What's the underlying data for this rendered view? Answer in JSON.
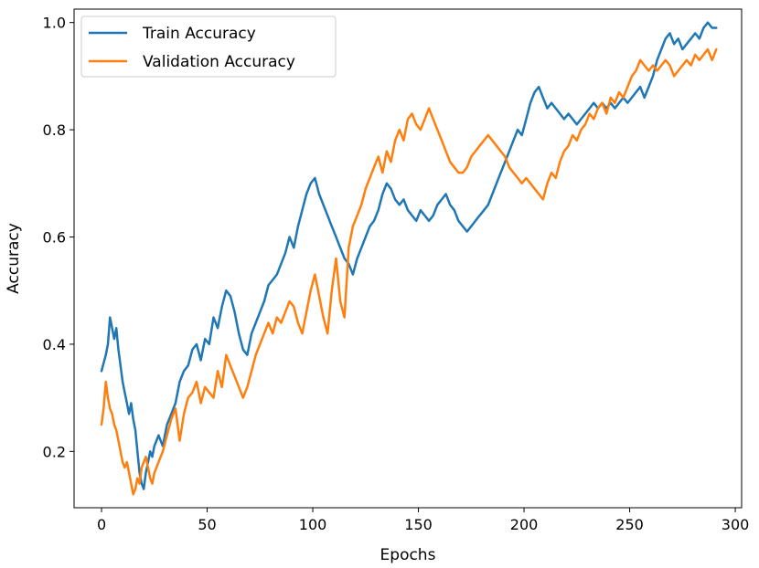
{
  "chart_data": {
    "type": "line",
    "title": "",
    "xlabel": "Epochs",
    "ylabel": "Accuracy",
    "xlim": [
      -13,
      303
    ],
    "ylim": [
      0.095,
      1.025
    ],
    "xticks": [
      0,
      50,
      100,
      150,
      200,
      250,
      300
    ],
    "yticks": [
      0.2,
      0.4,
      0.6,
      0.8,
      1.0
    ],
    "xtick_labels": [
      "0",
      "50",
      "100",
      "150",
      "200",
      "250",
      "300"
    ],
    "ytick_labels": [
      "0.2",
      "0.4",
      "0.6",
      "0.8",
      "1.0"
    ],
    "grid": false,
    "legend": "upper-left",
    "series": [
      {
        "name": "Train Accuracy",
        "color": "#1f77b4",
        "points": [
          [
            0,
            0.35
          ],
          [
            2,
            0.38
          ],
          [
            3,
            0.4
          ],
          [
            4,
            0.45
          ],
          [
            5,
            0.43
          ],
          [
            6,
            0.41
          ],
          [
            7,
            0.43
          ],
          [
            8,
            0.39
          ],
          [
            9,
            0.36
          ],
          [
            10,
            0.33
          ],
          [
            11,
            0.31
          ],
          [
            12,
            0.29
          ],
          [
            13,
            0.27
          ],
          [
            14,
            0.29
          ],
          [
            15,
            0.26
          ],
          [
            16,
            0.24
          ],
          [
            17,
            0.2
          ],
          [
            18,
            0.16
          ],
          [
            19,
            0.14
          ],
          [
            20,
            0.13
          ],
          [
            21,
            0.16
          ],
          [
            22,
            0.18
          ],
          [
            23,
            0.2
          ],
          [
            24,
            0.19
          ],
          [
            25,
            0.21
          ],
          [
            27,
            0.23
          ],
          [
            29,
            0.21
          ],
          [
            31,
            0.25
          ],
          [
            33,
            0.27
          ],
          [
            35,
            0.29
          ],
          [
            37,
            0.33
          ],
          [
            39,
            0.35
          ],
          [
            41,
            0.36
          ],
          [
            43,
            0.39
          ],
          [
            45,
            0.4
          ],
          [
            47,
            0.37
          ],
          [
            49,
            0.41
          ],
          [
            51,
            0.4
          ],
          [
            53,
            0.45
          ],
          [
            55,
            0.43
          ],
          [
            57,
            0.47
          ],
          [
            59,
            0.5
          ],
          [
            61,
            0.49
          ],
          [
            63,
            0.46
          ],
          [
            65,
            0.42
          ],
          [
            67,
            0.39
          ],
          [
            69,
            0.38
          ],
          [
            71,
            0.42
          ],
          [
            73,
            0.44
          ],
          [
            75,
            0.46
          ],
          [
            77,
            0.48
          ],
          [
            79,
            0.51
          ],
          [
            81,
            0.52
          ],
          [
            83,
            0.53
          ],
          [
            85,
            0.55
          ],
          [
            87,
            0.57
          ],
          [
            89,
            0.6
          ],
          [
            91,
            0.58
          ],
          [
            93,
            0.62
          ],
          [
            95,
            0.65
          ],
          [
            97,
            0.68
          ],
          [
            99,
            0.7
          ],
          [
            101,
            0.71
          ],
          [
            103,
            0.68
          ],
          [
            105,
            0.66
          ],
          [
            107,
            0.64
          ],
          [
            109,
            0.62
          ],
          [
            111,
            0.6
          ],
          [
            113,
            0.58
          ],
          [
            115,
            0.56
          ],
          [
            117,
            0.55
          ],
          [
            119,
            0.53
          ],
          [
            121,
            0.56
          ],
          [
            123,
            0.58
          ],
          [
            125,
            0.6
          ],
          [
            127,
            0.62
          ],
          [
            129,
            0.63
          ],
          [
            131,
            0.65
          ],
          [
            133,
            0.68
          ],
          [
            135,
            0.7
          ],
          [
            137,
            0.69
          ],
          [
            139,
            0.67
          ],
          [
            141,
            0.66
          ],
          [
            143,
            0.67
          ],
          [
            145,
            0.65
          ],
          [
            147,
            0.64
          ],
          [
            149,
            0.63
          ],
          [
            151,
            0.65
          ],
          [
            153,
            0.64
          ],
          [
            155,
            0.63
          ],
          [
            157,
            0.64
          ],
          [
            159,
            0.66
          ],
          [
            161,
            0.67
          ],
          [
            163,
            0.68
          ],
          [
            165,
            0.66
          ],
          [
            167,
            0.65
          ],
          [
            169,
            0.63
          ],
          [
            171,
            0.62
          ],
          [
            173,
            0.61
          ],
          [
            175,
            0.62
          ],
          [
            177,
            0.63
          ],
          [
            179,
            0.64
          ],
          [
            181,
            0.65
          ],
          [
            183,
            0.66
          ],
          [
            185,
            0.68
          ],
          [
            187,
            0.7
          ],
          [
            189,
            0.72
          ],
          [
            191,
            0.74
          ],
          [
            193,
            0.76
          ],
          [
            195,
            0.78
          ],
          [
            197,
            0.8
          ],
          [
            199,
            0.79
          ],
          [
            201,
            0.82
          ],
          [
            203,
            0.85
          ],
          [
            205,
            0.87
          ],
          [
            207,
            0.88
          ],
          [
            209,
            0.86
          ],
          [
            211,
            0.84
          ],
          [
            213,
            0.85
          ],
          [
            215,
            0.84
          ],
          [
            217,
            0.83
          ],
          [
            219,
            0.82
          ],
          [
            221,
            0.83
          ],
          [
            223,
            0.82
          ],
          [
            225,
            0.81
          ],
          [
            227,
            0.82
          ],
          [
            229,
            0.83
          ],
          [
            231,
            0.84
          ],
          [
            233,
            0.85
          ],
          [
            235,
            0.84
          ],
          [
            237,
            0.85
          ],
          [
            239,
            0.84
          ],
          [
            241,
            0.85
          ],
          [
            243,
            0.84
          ],
          [
            245,
            0.85
          ],
          [
            247,
            0.86
          ],
          [
            249,
            0.85
          ],
          [
            251,
            0.86
          ],
          [
            253,
            0.87
          ],
          [
            255,
            0.88
          ],
          [
            257,
            0.86
          ],
          [
            259,
            0.88
          ],
          [
            261,
            0.9
          ],
          [
            263,
            0.93
          ],
          [
            265,
            0.95
          ],
          [
            267,
            0.97
          ],
          [
            269,
            0.98
          ],
          [
            271,
            0.96
          ],
          [
            273,
            0.97
          ],
          [
            275,
            0.95
          ],
          [
            277,
            0.96
          ],
          [
            279,
            0.97
          ],
          [
            281,
            0.98
          ],
          [
            283,
            0.97
          ],
          [
            285,
            0.99
          ],
          [
            287,
            1.0
          ],
          [
            289,
            0.99
          ],
          [
            291,
            0.99
          ]
        ]
      },
      {
        "name": "Validation Accuracy",
        "color": "#ff7f0e",
        "points": [
          [
            0,
            0.25
          ],
          [
            1,
            0.28
          ],
          [
            2,
            0.33
          ],
          [
            3,
            0.3
          ],
          [
            4,
            0.28
          ],
          [
            5,
            0.27
          ],
          [
            6,
            0.25
          ],
          [
            7,
            0.24
          ],
          [
            8,
            0.22
          ],
          [
            9,
            0.2
          ],
          [
            10,
            0.18
          ],
          [
            11,
            0.17
          ],
          [
            12,
            0.18
          ],
          [
            13,
            0.16
          ],
          [
            14,
            0.14
          ],
          [
            15,
            0.12
          ],
          [
            16,
            0.13
          ],
          [
            17,
            0.15
          ],
          [
            18,
            0.14
          ],
          [
            19,
            0.17
          ],
          [
            20,
            0.18
          ],
          [
            21,
            0.19
          ],
          [
            22,
            0.17
          ],
          [
            23,
            0.15
          ],
          [
            24,
            0.14
          ],
          [
            25,
            0.16
          ],
          [
            27,
            0.18
          ],
          [
            29,
            0.2
          ],
          [
            31,
            0.23
          ],
          [
            33,
            0.26
          ],
          [
            35,
            0.28
          ],
          [
            37,
            0.22
          ],
          [
            39,
            0.27
          ],
          [
            41,
            0.3
          ],
          [
            43,
            0.31
          ],
          [
            45,
            0.33
          ],
          [
            47,
            0.29
          ],
          [
            49,
            0.32
          ],
          [
            51,
            0.31
          ],
          [
            53,
            0.3
          ],
          [
            55,
            0.35
          ],
          [
            57,
            0.32
          ],
          [
            59,
            0.38
          ],
          [
            61,
            0.36
          ],
          [
            63,
            0.34
          ],
          [
            65,
            0.32
          ],
          [
            67,
            0.3
          ],
          [
            69,
            0.32
          ],
          [
            71,
            0.35
          ],
          [
            73,
            0.38
          ],
          [
            75,
            0.4
          ],
          [
            77,
            0.42
          ],
          [
            79,
            0.44
          ],
          [
            81,
            0.42
          ],
          [
            83,
            0.45
          ],
          [
            85,
            0.44
          ],
          [
            87,
            0.46
          ],
          [
            89,
            0.48
          ],
          [
            91,
            0.47
          ],
          [
            93,
            0.44
          ],
          [
            95,
            0.42
          ],
          [
            97,
            0.46
          ],
          [
            99,
            0.5
          ],
          [
            101,
            0.53
          ],
          [
            103,
            0.49
          ],
          [
            105,
            0.45
          ],
          [
            107,
            0.42
          ],
          [
            109,
            0.5
          ],
          [
            111,
            0.56
          ],
          [
            113,
            0.48
          ],
          [
            115,
            0.45
          ],
          [
            117,
            0.58
          ],
          [
            119,
            0.62
          ],
          [
            121,
            0.64
          ],
          [
            123,
            0.66
          ],
          [
            125,
            0.69
          ],
          [
            127,
            0.71
          ],
          [
            129,
            0.73
          ],
          [
            131,
            0.75
          ],
          [
            133,
            0.72
          ],
          [
            135,
            0.76
          ],
          [
            137,
            0.74
          ],
          [
            139,
            0.78
          ],
          [
            141,
            0.8
          ],
          [
            143,
            0.78
          ],
          [
            145,
            0.82
          ],
          [
            147,
            0.83
          ],
          [
            149,
            0.81
          ],
          [
            151,
            0.8
          ],
          [
            153,
            0.82
          ],
          [
            155,
            0.84
          ],
          [
            157,
            0.82
          ],
          [
            159,
            0.8
          ],
          [
            161,
            0.78
          ],
          [
            163,
            0.76
          ],
          [
            165,
            0.74
          ],
          [
            167,
            0.73
          ],
          [
            169,
            0.72
          ],
          [
            171,
            0.72
          ],
          [
            173,
            0.73
          ],
          [
            175,
            0.75
          ],
          [
            177,
            0.76
          ],
          [
            179,
            0.77
          ],
          [
            181,
            0.78
          ],
          [
            183,
            0.79
          ],
          [
            185,
            0.78
          ],
          [
            187,
            0.77
          ],
          [
            189,
            0.76
          ],
          [
            191,
            0.75
          ],
          [
            193,
            0.73
          ],
          [
            195,
            0.72
          ],
          [
            197,
            0.71
          ],
          [
            199,
            0.7
          ],
          [
            201,
            0.71
          ],
          [
            203,
            0.7
          ],
          [
            205,
            0.69
          ],
          [
            207,
            0.68
          ],
          [
            209,
            0.67
          ],
          [
            211,
            0.7
          ],
          [
            213,
            0.72
          ],
          [
            215,
            0.71
          ],
          [
            217,
            0.74
          ],
          [
            219,
            0.76
          ],
          [
            221,
            0.77
          ],
          [
            223,
            0.79
          ],
          [
            225,
            0.78
          ],
          [
            227,
            0.8
          ],
          [
            229,
            0.81
          ],
          [
            231,
            0.83
          ],
          [
            233,
            0.82
          ],
          [
            235,
            0.84
          ],
          [
            237,
            0.85
          ],
          [
            239,
            0.83
          ],
          [
            241,
            0.86
          ],
          [
            243,
            0.85
          ],
          [
            245,
            0.87
          ],
          [
            247,
            0.86
          ],
          [
            249,
            0.88
          ],
          [
            251,
            0.9
          ],
          [
            253,
            0.91
          ],
          [
            255,
            0.93
          ],
          [
            257,
            0.92
          ],
          [
            259,
            0.91
          ],
          [
            261,
            0.92
          ],
          [
            263,
            0.91
          ],
          [
            265,
            0.92
          ],
          [
            267,
            0.93
          ],
          [
            269,
            0.92
          ],
          [
            271,
            0.9
          ],
          [
            273,
            0.91
          ],
          [
            275,
            0.92
          ],
          [
            277,
            0.93
          ],
          [
            279,
            0.92
          ],
          [
            281,
            0.94
          ],
          [
            283,
            0.93
          ],
          [
            285,
            0.94
          ],
          [
            287,
            0.95
          ],
          [
            289,
            0.93
          ],
          [
            291,
            0.95
          ]
        ]
      }
    ]
  }
}
